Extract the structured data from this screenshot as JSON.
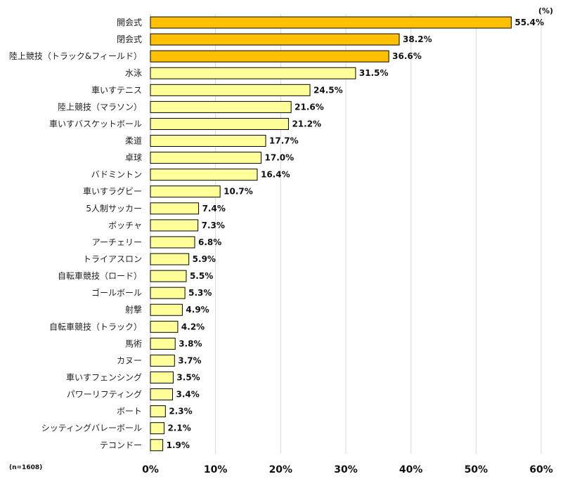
{
  "chart_data": {
    "type": "bar",
    "orientation": "horizontal",
    "unit": "(%)",
    "note": "(n=1608)",
    "xlim": [
      0,
      60
    ],
    "xticks": [
      "0%",
      "10%",
      "20%",
      "30%",
      "40%",
      "50%",
      "60%"
    ],
    "grid": true,
    "colors": {
      "highlight": "#FFC000",
      "normal": "#FFFF99",
      "border": "#000000",
      "grid": "#D9D9D9"
    },
    "bars": [
      {
        "category": "開会式",
        "value": 55.4,
        "label": "55.4%",
        "highlight": true
      },
      {
        "category": "閉会式",
        "value": 38.2,
        "label": "38.2%",
        "highlight": true
      },
      {
        "category": "陸上競技（トラック&フィールド）",
        "value": 36.6,
        "label": "36.6%",
        "highlight": true
      },
      {
        "category": "水泳",
        "value": 31.5,
        "label": "31.5%",
        "highlight": false
      },
      {
        "category": "車いすテニス",
        "value": 24.5,
        "label": "24.5%",
        "highlight": false
      },
      {
        "category": "陸上競技（マラソン）",
        "value": 21.6,
        "label": "21.6%",
        "highlight": false
      },
      {
        "category": "車いすバスケットボール",
        "value": 21.2,
        "label": "21.2%",
        "highlight": false
      },
      {
        "category": "柔道",
        "value": 17.7,
        "label": "17.7%",
        "highlight": false
      },
      {
        "category": "卓球",
        "value": 17.0,
        "label": "17.0%",
        "highlight": false
      },
      {
        "category": "バドミントン",
        "value": 16.4,
        "label": "16.4%",
        "highlight": false
      },
      {
        "category": "車いすラグビー",
        "value": 10.7,
        "label": "10.7%",
        "highlight": false
      },
      {
        "category": "5人制サッカー",
        "value": 7.4,
        "label": "7.4%",
        "highlight": false
      },
      {
        "category": "ボッチャ",
        "value": 7.3,
        "label": "7.3%",
        "highlight": false
      },
      {
        "category": "アーチェリー",
        "value": 6.8,
        "label": "6.8%",
        "highlight": false
      },
      {
        "category": "トライアスロン",
        "value": 5.9,
        "label": "5.9%",
        "highlight": false
      },
      {
        "category": "自転車競技（ロード）",
        "value": 5.5,
        "label": "5.5%",
        "highlight": false
      },
      {
        "category": "ゴールボール",
        "value": 5.3,
        "label": "5.3%",
        "highlight": false
      },
      {
        "category": "射撃",
        "value": 4.9,
        "label": "4.9%",
        "highlight": false
      },
      {
        "category": "自転車競技（トラック）",
        "value": 4.2,
        "label": "4.2%",
        "highlight": false
      },
      {
        "category": "馬術",
        "value": 3.8,
        "label": "3.8%",
        "highlight": false
      },
      {
        "category": "カヌー",
        "value": 3.7,
        "label": "3.7%",
        "highlight": false
      },
      {
        "category": "車いすフェンシング",
        "value": 3.5,
        "label": "3.5%",
        "highlight": false
      },
      {
        "category": "パワーリフティング",
        "value": 3.4,
        "label": "3.4%",
        "highlight": false
      },
      {
        "category": "ボート",
        "value": 2.3,
        "label": "2.3%",
        "highlight": false
      },
      {
        "category": "シッティングバレーボール",
        "value": 2.1,
        "label": "2.1%",
        "highlight": false
      },
      {
        "category": "テコンドー",
        "value": 1.9,
        "label": "1.9%",
        "highlight": false
      }
    ]
  }
}
